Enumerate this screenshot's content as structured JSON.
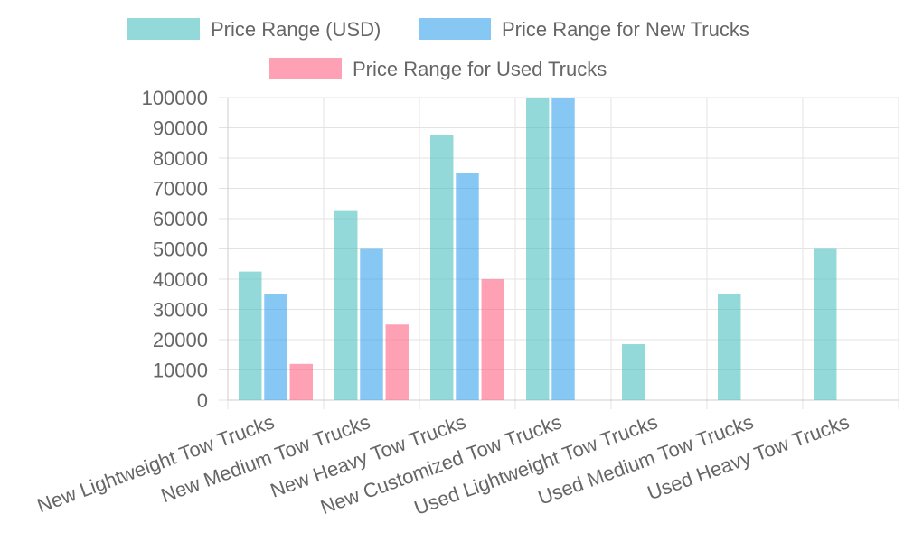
{
  "chart_data": {
    "type": "bar",
    "categories": [
      "New Lightweight Tow Trucks",
      "New Medium Tow Trucks",
      "New Heavy Tow Trucks",
      "New Customized Tow Trucks",
      "Used Lightweight Tow Trucks",
      "Used Medium Tow Trucks",
      "Used Heavy Tow Trucks"
    ],
    "series": [
      {
        "name": "Price Range (USD)",
        "color": "#4bc0c0",
        "values": [
          42500,
          62500,
          87500,
          100000,
          18500,
          35000,
          50000
        ]
      },
      {
        "name": "Price Range for New Trucks",
        "color": "#36a2eb",
        "values": [
          35000,
          50000,
          75000,
          100000,
          null,
          null,
          null
        ]
      },
      {
        "name": "Price Range for Used Trucks",
        "color": "#ff6384",
        "values": [
          12000,
          25000,
          40000,
          null,
          null,
          null,
          null
        ]
      }
    ],
    "yticks": [
      "0",
      "10000",
      "20000",
      "30000",
      "40000",
      "50000",
      "60000",
      "70000",
      "80000",
      "90000",
      "100000"
    ],
    "ylim": [
      0,
      100000
    ],
    "grid": true,
    "legend_position": "top"
  }
}
